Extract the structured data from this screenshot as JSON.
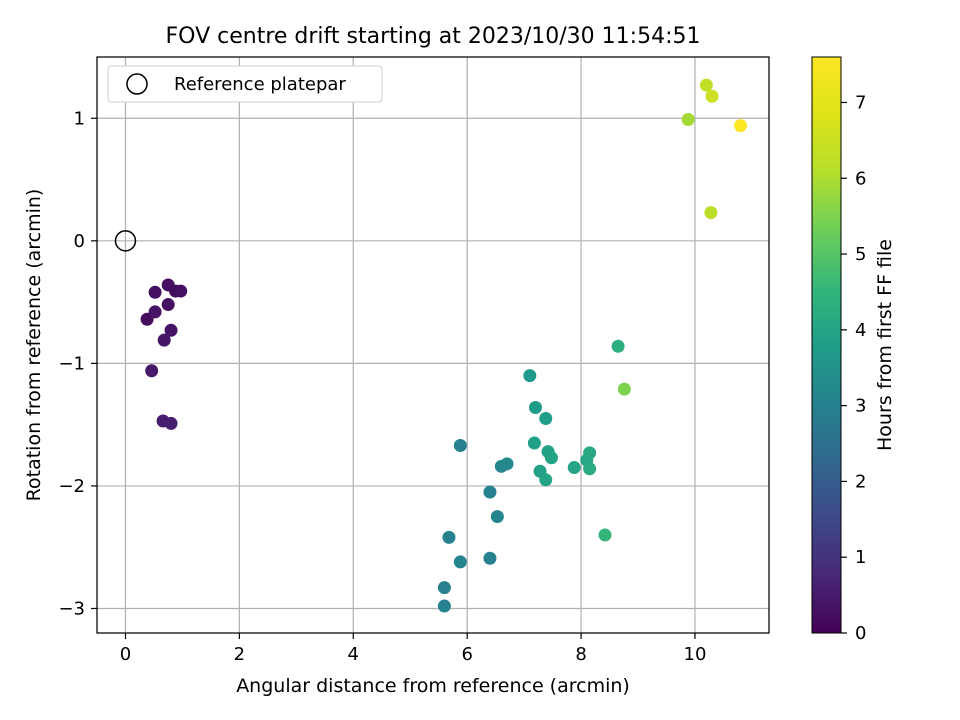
{
  "chart_data": {
    "type": "scatter",
    "title": "FOV centre drift starting at 2023/10/30 11:54:51",
    "xlabel": "Angular distance from reference (arcmin)",
    "ylabel": "Rotation from reference (arcmin)",
    "xlim": [
      -0.5,
      11.3
    ],
    "ylim": [
      -3.2,
      1.5
    ],
    "x_ticks": [
      0,
      2,
      4,
      6,
      8,
      10
    ],
    "x_tick_labels": [
      "0",
      "2",
      "4",
      "6",
      "8",
      "10"
    ],
    "y_ticks": [
      1,
      0,
      -1,
      -2,
      -3
    ],
    "y_tick_labels": [
      "1",
      "0",
      "−1",
      "−2",
      "−3"
    ],
    "grid": true,
    "legend": {
      "placement": "upper-left",
      "label": "Reference platepar"
    },
    "reference_point": {
      "x": 0,
      "y": 0
    },
    "colorbar": {
      "label": "Hours from first FF file",
      "colormap": "viridis",
      "range": [
        0,
        7.6
      ],
      "ticks": [
        0,
        1,
        2,
        3,
        4,
        5,
        6,
        7
      ],
      "tick_labels": [
        "0",
        "1",
        "2",
        "3",
        "4",
        "5",
        "6",
        "7"
      ]
    },
    "points": [
      {
        "x": 0.38,
        "y": -0.64,
        "h": 0.2
      },
      {
        "x": 0.52,
        "y": -0.42,
        "h": 0.3
      },
      {
        "x": 0.52,
        "y": -0.58,
        "h": 0.35
      },
      {
        "x": 0.75,
        "y": -0.36,
        "h": 0.25
      },
      {
        "x": 0.75,
        "y": -0.52,
        "h": 0.3
      },
      {
        "x": 0.88,
        "y": -0.41,
        "h": 0.2
      },
      {
        "x": 0.97,
        "y": -0.41,
        "h": 0.25
      },
      {
        "x": 0.8,
        "y": -0.73,
        "h": 0.35
      },
      {
        "x": 0.68,
        "y": -0.81,
        "h": 0.4
      },
      {
        "x": 0.46,
        "y": -1.06,
        "h": 0.45
      },
      {
        "x": 0.66,
        "y": -1.47,
        "h": 0.55
      },
      {
        "x": 0.8,
        "y": -1.49,
        "h": 0.6
      },
      {
        "x": 5.88,
        "y": -1.67,
        "h": 3.0
      },
      {
        "x": 6.4,
        "y": -2.05,
        "h": 3.05
      },
      {
        "x": 6.53,
        "y": -2.25,
        "h": 3.1
      },
      {
        "x": 6.6,
        "y": -1.84,
        "h": 3.15
      },
      {
        "x": 6.7,
        "y": -1.82,
        "h": 3.2
      },
      {
        "x": 5.68,
        "y": -2.42,
        "h": 3.05
      },
      {
        "x": 5.88,
        "y": -2.62,
        "h": 3.1
      },
      {
        "x": 6.4,
        "y": -2.59,
        "h": 3.0
      },
      {
        "x": 5.6,
        "y": -2.83,
        "h": 3.0
      },
      {
        "x": 5.6,
        "y": -2.98,
        "h": 3.05
      },
      {
        "x": 7.1,
        "y": -1.1,
        "h": 3.7
      },
      {
        "x": 7.2,
        "y": -1.36,
        "h": 3.75
      },
      {
        "x": 7.38,
        "y": -1.45,
        "h": 3.8
      },
      {
        "x": 7.18,
        "y": -1.65,
        "h": 3.85
      },
      {
        "x": 7.42,
        "y": -1.72,
        "h": 3.9
      },
      {
        "x": 7.48,
        "y": -1.77,
        "h": 3.95
      },
      {
        "x": 7.28,
        "y": -1.88,
        "h": 3.9
      },
      {
        "x": 7.38,
        "y": -1.95,
        "h": 3.95
      },
      {
        "x": 7.88,
        "y": -1.85,
        "h": 4.0
      },
      {
        "x": 8.1,
        "y": -1.79,
        "h": 4.05
      },
      {
        "x": 8.15,
        "y": -1.73,
        "h": 4.1
      },
      {
        "x": 8.15,
        "y": -1.86,
        "h": 4.15
      },
      {
        "x": 8.65,
        "y": -0.86,
        "h": 4.3
      },
      {
        "x": 8.42,
        "y": -2.4,
        "h": 4.5
      },
      {
        "x": 8.76,
        "y": -1.21,
        "h": 5.5
      },
      {
        "x": 9.88,
        "y": 0.99,
        "h": 5.9
      },
      {
        "x": 10.2,
        "y": 1.27,
        "h": 6.3
      },
      {
        "x": 10.3,
        "y": 1.18,
        "h": 6.5
      },
      {
        "x": 10.28,
        "y": 0.23,
        "h": 6.2
      },
      {
        "x": 10.8,
        "y": 0.94,
        "h": 7.6
      }
    ]
  }
}
